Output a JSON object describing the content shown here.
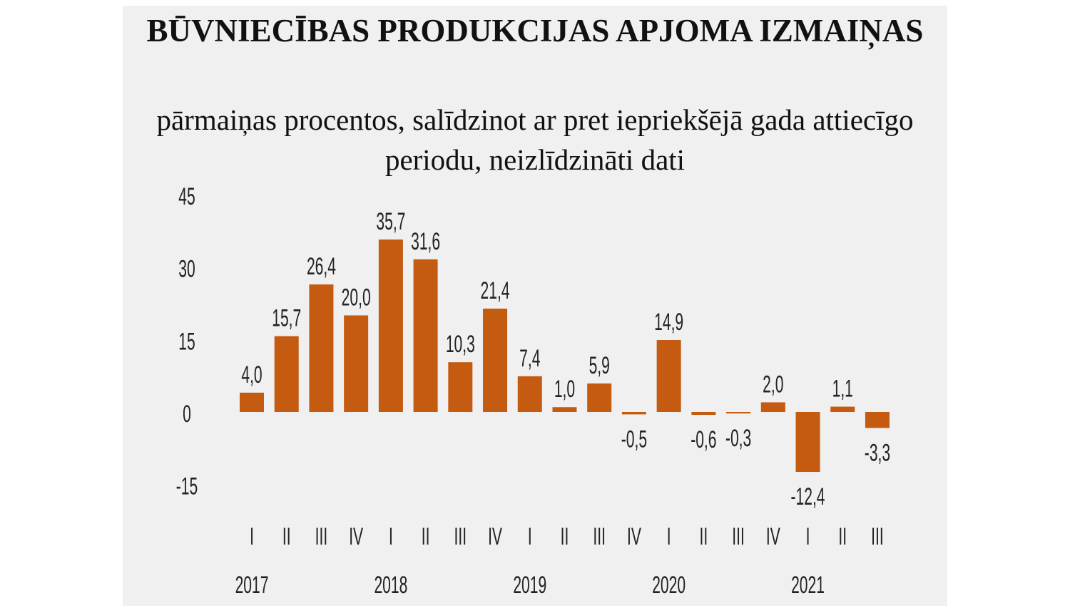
{
  "chart_data": {
    "type": "bar",
    "title": "BŪVNIECĪBAS PRODUKCIJAS APJOMA IZMAIŅAS",
    "subtitle": "pārmaiņas procentos, salīdzinot ar pret iepriekšējā gada attiecīgo periodu, neizlīdzināti dati",
    "categories": [
      "I",
      "II",
      "III",
      "IV",
      "I",
      "II",
      "III",
      "IV",
      "I",
      "II",
      "III",
      "IV",
      "I",
      "II",
      "III",
      "IV",
      "I",
      "II",
      "III"
    ],
    "years": [
      {
        "label": "2017",
        "start": 0
      },
      {
        "label": "2018",
        "start": 4
      },
      {
        "label": "2019",
        "start": 8
      },
      {
        "label": "2020",
        "start": 12
      },
      {
        "label": "2021",
        "start": 16
      }
    ],
    "values": [
      4.0,
      15.7,
      26.4,
      20.0,
      35.7,
      31.6,
      10.3,
      21.4,
      7.4,
      1.0,
      5.9,
      -0.5,
      14.9,
      -0.6,
      -0.3,
      2.0,
      -12.4,
      1.1,
      -3.3
    ],
    "data_labels": [
      "4,0",
      "15,7",
      "26,4",
      "20,0",
      "35,7",
      "31,6",
      "10,3",
      "21,4",
      "7,4",
      "1,0",
      "5,9",
      "-0,5",
      "14,9",
      "-0,6",
      "-0,3",
      "2,0",
      "-12,4",
      "1,1",
      "-3,3"
    ],
    "yticks": [
      45,
      30,
      15,
      0,
      -15
    ],
    "ytick_labels": [
      "45",
      "30",
      "15",
      "0",
      "-15"
    ],
    "ylim": [
      -15,
      45
    ],
    "grid": false,
    "legend": "none",
    "bar_color": "#c55a11",
    "background_color": "#f0f0f0"
  }
}
